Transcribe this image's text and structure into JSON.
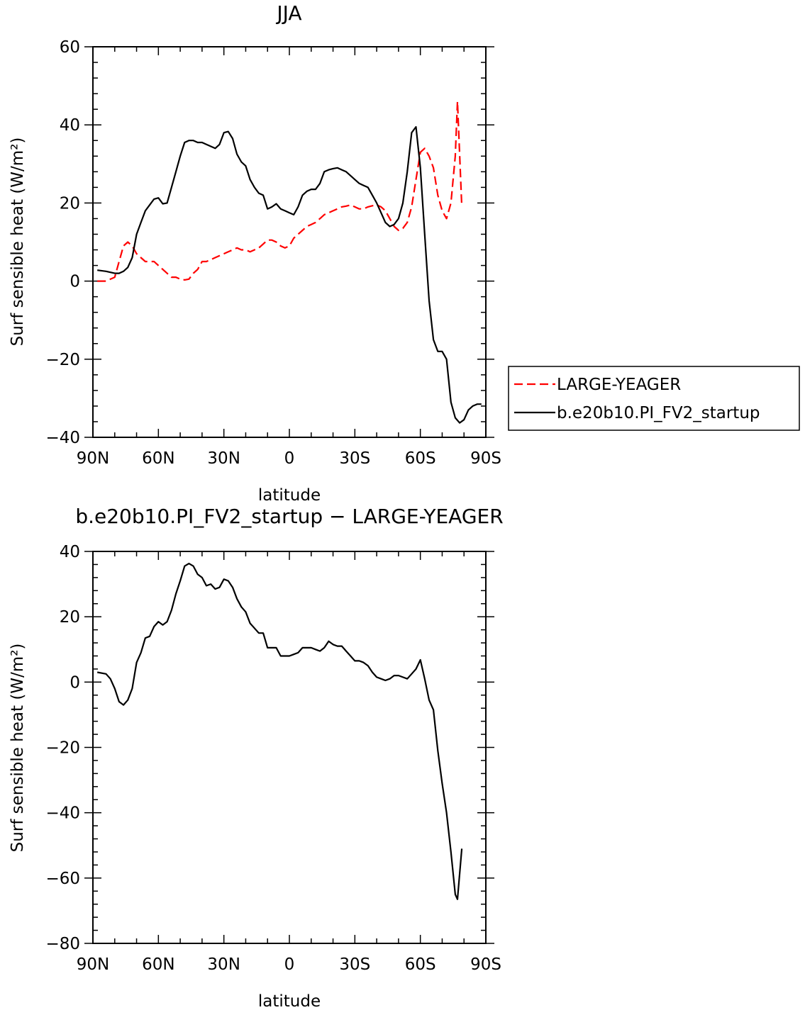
{
  "chart_data": [
    {
      "type": "line",
      "title": "JJA",
      "xlabel": "latitude",
      "ylabel": "Surf sensible heat (W/m²)",
      "ylim": [
        -40,
        60
      ],
      "yticks": [
        -40,
        -20,
        0,
        20,
        40,
        60
      ],
      "xlim": [
        90,
        -90
      ],
      "xticks": [
        {
          "value": 90,
          "label": "90N"
        },
        {
          "value": 60,
          "label": "60N"
        },
        {
          "value": 30,
          "label": "30N"
        },
        {
          "value": 0,
          "label": "0"
        },
        {
          "value": -30,
          "label": "30S"
        },
        {
          "value": -60,
          "label": "60S"
        },
        {
          "value": -90,
          "label": "90S"
        }
      ],
      "grid": false,
      "legend": "right",
      "series": [
        {
          "name": "LARGE-YEAGER",
          "color": "#ff0000",
          "dash": "dashed",
          "x": [
            88,
            84,
            80,
            78,
            76,
            74,
            72,
            70,
            68,
            66,
            64,
            62,
            60,
            58,
            56,
            54,
            52,
            50,
            48,
            46,
            44,
            42,
            40,
            38,
            36,
            34,
            32,
            30,
            28,
            26,
            24,
            22,
            20,
            18,
            16,
            14,
            12,
            10,
            8,
            6,
            4,
            2,
            0,
            -2,
            -4,
            -6,
            -8,
            -10,
            -12,
            -14,
            -16,
            -18,
            -20,
            -22,
            -24,
            -26,
            -28,
            -30,
            -32,
            -34,
            -36,
            -38,
            -40,
            -42,
            -44,
            -46,
            -48,
            -50,
            -52,
            -54,
            -56,
            -58,
            -60,
            -62,
            -64,
            -66,
            -68,
            -70,
            -72,
            -74,
            -76,
            -77,
            -79
          ],
          "y": [
            0,
            0,
            1,
            5,
            9,
            10,
            9,
            7,
            6,
            5,
            5,
            5,
            4,
            3,
            2,
            1,
            1,
            0.5,
            0.3,
            0.5,
            2,
            3,
            5,
            5,
            5.5,
            6,
            6.5,
            7,
            7.5,
            8,
            8.5,
            8,
            8,
            7.5,
            8,
            8.5,
            9.5,
            10.5,
            10.5,
            10,
            9,
            8.5,
            9,
            11,
            12,
            13,
            14,
            14.5,
            15,
            16,
            17,
            17.5,
            18,
            18.5,
            19,
            19.2,
            19.5,
            19,
            18.5,
            18.5,
            19,
            19.3,
            19.5,
            19,
            18,
            16,
            14,
            13,
            13.5,
            15,
            19,
            26,
            33,
            34,
            32,
            29,
            22,
            18,
            16,
            20,
            32,
            46,
            19
          ]
        },
        {
          "name": "b.e20b10.PI_FV2_startup",
          "color": "#000000",
          "dash": "solid",
          "x": [
            88,
            84,
            80,
            78,
            76,
            74,
            72,
            70,
            68,
            66,
            64,
            62,
            60,
            58,
            56,
            54,
            52,
            50,
            48,
            46,
            44,
            42,
            40,
            38,
            36,
            34,
            32,
            30,
            28,
            26,
            24,
            22,
            20,
            18,
            16,
            14,
            12,
            10,
            8,
            6,
            4,
            2,
            0,
            -2,
            -4,
            -6,
            -8,
            -10,
            -12,
            -14,
            -16,
            -18,
            -20,
            -22,
            -24,
            -26,
            -28,
            -30,
            -32,
            -34,
            -36,
            -38,
            -40,
            -42,
            -44,
            -46,
            -48,
            -50,
            -52,
            -54,
            -56,
            -58,
            -60,
            -62,
            -64,
            -66,
            -68,
            -70,
            -72,
            -74,
            -76,
            -78,
            -80,
            -82,
            -84,
            -86,
            -88
          ],
          "y": [
            2.8,
            2.5,
            2,
            2,
            2.5,
            3.5,
            6,
            12,
            15,
            18,
            19.5,
            21,
            21.3,
            19.8,
            20,
            24,
            28,
            32,
            35.5,
            36,
            36,
            35.5,
            35.5,
            35,
            34.5,
            34,
            35,
            38,
            38.3,
            36.5,
            32.5,
            30.5,
            29.5,
            26,
            24,
            22.5,
            22,
            18.5,
            19,
            19.8,
            18.5,
            18,
            17.5,
            17,
            19,
            22,
            23,
            23.5,
            23.5,
            25,
            28,
            28.5,
            28.8,
            29,
            28.5,
            28,
            27,
            26,
            25,
            24.5,
            24,
            22,
            20,
            17.5,
            15,
            14,
            14.5,
            16,
            20,
            28,
            38,
            39.5,
            29,
            12,
            -5,
            -15,
            -18,
            -18,
            -20,
            -31,
            -35,
            -36.3,
            -35.5,
            -33,
            -32,
            -31.5,
            -31.5
          ]
        }
      ]
    },
    {
      "type": "line",
      "title": "b.e20b10.PI_FV2_startup − LARGE-YEAGER",
      "xlabel": "latitude",
      "ylabel": "Surf sensible heat (W/m²)",
      "ylim": [
        -80,
        40
      ],
      "yticks": [
        -80,
        -60,
        -40,
        -20,
        0,
        20,
        40
      ],
      "xlim": [
        90,
        -90
      ],
      "xticks": [
        {
          "value": 90,
          "label": "90N"
        },
        {
          "value": 60,
          "label": "60N"
        },
        {
          "value": 30,
          "label": "30N"
        },
        {
          "value": 0,
          "label": "0"
        },
        {
          "value": -30,
          "label": "30S"
        },
        {
          "value": -60,
          "label": "60S"
        },
        {
          "value": -90,
          "label": "90S"
        }
      ],
      "grid": false,
      "legend": "none",
      "series": [
        {
          "color": "#000000",
          "dash": "solid",
          "x": [
            88,
            84,
            82,
            80,
            78,
            76,
            74,
            72,
            70,
            68,
            66,
            64,
            62,
            60,
            58,
            56,
            54,
            52,
            50,
            48,
            46,
            44,
            42,
            40,
            38,
            36,
            34,
            32,
            30,
            28,
            26,
            24,
            22,
            20,
            18,
            16,
            14,
            12,
            10,
            8,
            6,
            4,
            2,
            0,
            -2,
            -4,
            -6,
            -8,
            -10,
            -12,
            -14,
            -16,
            -18,
            -20,
            -22,
            -24,
            -26,
            -28,
            -30,
            -32,
            -34,
            -36,
            -38,
            -40,
            -42,
            -44,
            -46,
            -48,
            -50,
            -52,
            -54,
            -56,
            -58,
            -60,
            -62,
            -64,
            -66,
            -68,
            -70,
            -72,
            -74,
            -76,
            -77,
            -79
          ],
          "y": [
            3,
            2.5,
            1,
            -2,
            -6,
            -7,
            -5.5,
            -2,
            6,
            9,
            13.5,
            14,
            17,
            18.5,
            17.5,
            18.5,
            22,
            27,
            31,
            35.5,
            36.3,
            35.5,
            33,
            32,
            29.5,
            30,
            28.5,
            29,
            31.5,
            31,
            29,
            25.5,
            23,
            21.5,
            18,
            16.5,
            15,
            15,
            10.5,
            10.5,
            10.5,
            8,
            8,
            8,
            8.5,
            9,
            10.5,
            10.5,
            10.5,
            10,
            9.5,
            10.5,
            12.5,
            11.5,
            11,
            11,
            9.5,
            8,
            6.5,
            6.5,
            6,
            5,
            3,
            1.5,
            1,
            0.5,
            1,
            2,
            2,
            1.5,
            1,
            2.5,
            4,
            6.8,
            1,
            -5.5,
            -8.5,
            -21,
            -31,
            -40,
            -52,
            -65,
            -66.5,
            -51
          ]
        }
      ]
    }
  ]
}
